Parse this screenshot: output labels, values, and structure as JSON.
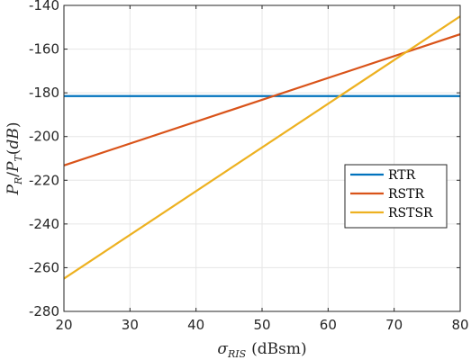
{
  "chart_data": {
    "type": "line",
    "xlabel": "σRIS (dBsm)",
    "ylabel": "PR/PT(dB)",
    "xlim": [
      20,
      80
    ],
    "ylim": [
      -280,
      -140
    ],
    "x_ticks": [
      20,
      30,
      40,
      50,
      60,
      70,
      80
    ],
    "y_ticks": [
      -140,
      -160,
      -180,
      -200,
      -220,
      -240,
      -260,
      -280
    ],
    "grid": true,
    "legend_position": "right",
    "series": [
      {
        "name": "RTR",
        "x": [
          20,
          80
        ],
        "y": [
          -181.5,
          -181.5
        ],
        "color": "#0072BD"
      },
      {
        "name": "RSTR",
        "x": [
          20,
          80
        ],
        "y": [
          -213.2,
          -153.2
        ],
        "color": "#D95319"
      },
      {
        "name": "RSTSR",
        "x": [
          20,
          80
        ],
        "y": [
          -265.0,
          -145.0
        ],
        "color": "#EDB120"
      }
    ]
  }
}
